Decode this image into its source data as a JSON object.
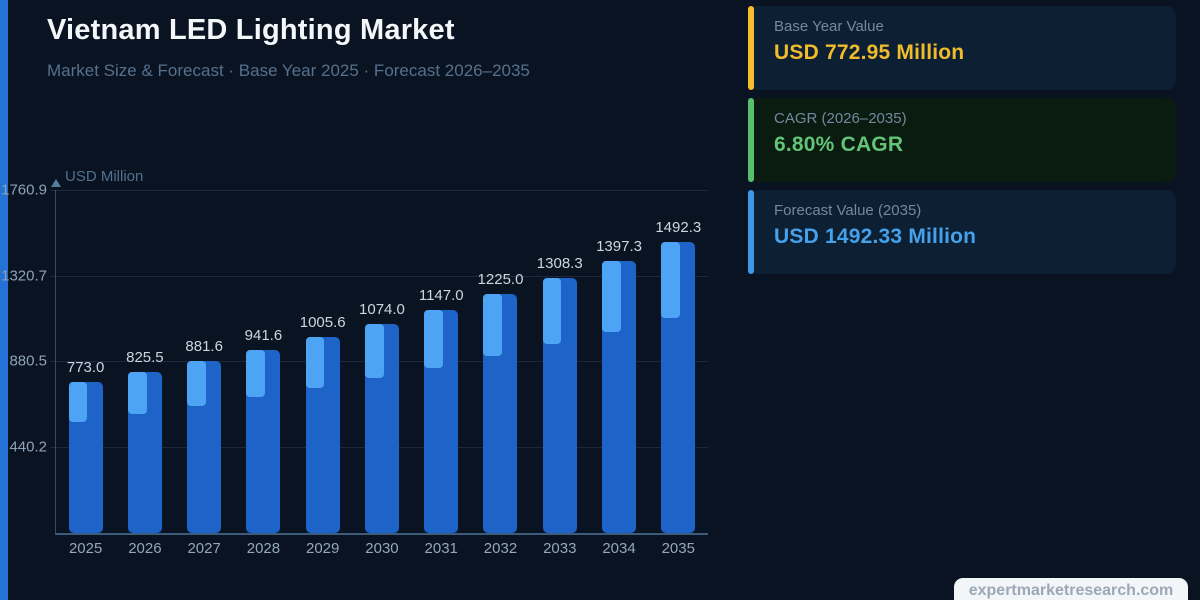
{
  "page": {
    "title": "Vietnam LED Lighting Market",
    "subtitle": "Market Size & Forecast  ·  Base Year 2025  ·  Forecast 2026–2035"
  },
  "chart_data": {
    "type": "bar",
    "title": "Vietnam LED Lighting Market",
    "categories": [
      "2025",
      "2026",
      "2027",
      "2028",
      "2029",
      "2030",
      "2031",
      "2032",
      "2033",
      "2034",
      "2035"
    ],
    "values": [
      773.0,
      825.5,
      881.6,
      941.6,
      1005.6,
      1074.0,
      1147.0,
      1225.0,
      1308.3,
      1397.3,
      1492.3
    ],
    "value_label_decimals": 1,
    "xlabel": "",
    "ylabel": "USD Million",
    "ylim": [
      0,
      1760.9
    ],
    "y_ticks": [
      440.2,
      880.5,
      1320.7,
      1760.9
    ],
    "grid": true,
    "legend": "none",
    "bar_color": "#1e64c8",
    "bar_highlight_color": "#4da3f4"
  },
  "cards": [
    {
      "label": "Base Year Value",
      "value": "USD 772.95 Million",
      "accent": "#f3bf2c",
      "value_color": "#f0bc2b",
      "bg": "#0d2033"
    },
    {
      "label": "CAGR (2026–2035)",
      "value": "6.80% CAGR",
      "accent": "#58c06c",
      "value_color": "#63c377",
      "bg": "#0a1b10"
    },
    {
      "label": "Forecast Value (2035)",
      "value": "USD 1492.33 Million",
      "accent": "#3f97e8",
      "value_color": "#45a1ec",
      "bg": "#0d2033"
    }
  ],
  "watermark": {
    "text": "expertmarketresearch.com"
  },
  "colors": {
    "background": "#0a1321",
    "left_stripe": "#2472d6"
  }
}
